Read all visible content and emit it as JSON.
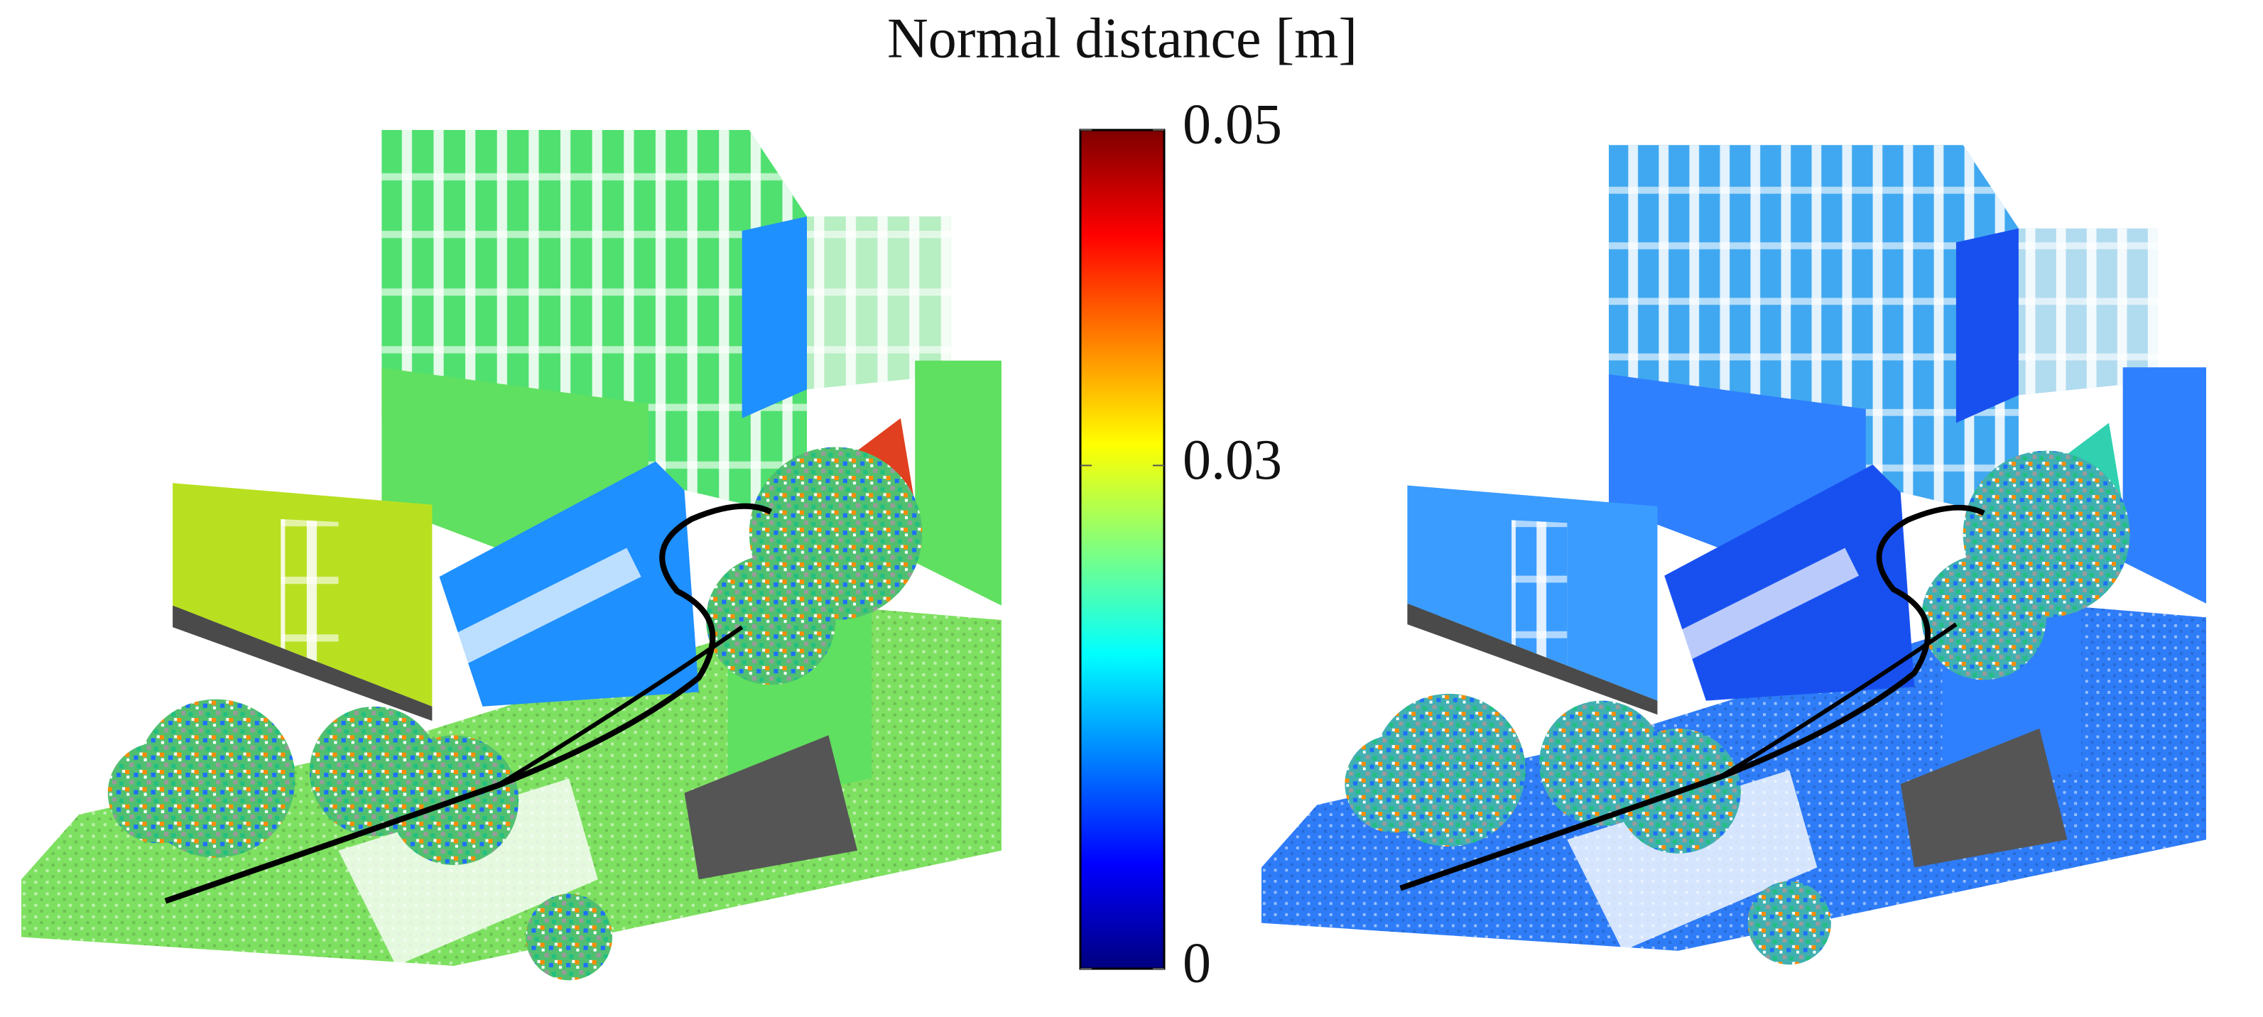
{
  "figure": {
    "title": "Normal distance [m]",
    "colorbar": {
      "lim": [
        0,
        0.05
      ],
      "ticks": [
        0,
        0.03,
        0.05
      ],
      "colormap": "jet"
    }
  }
}
